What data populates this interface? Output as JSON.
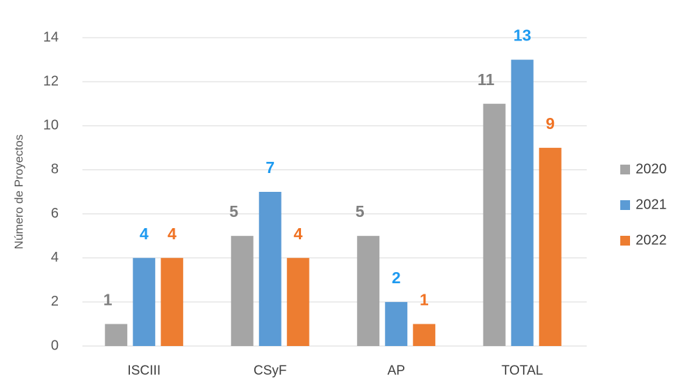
{
  "chart_data": {
    "type": "bar",
    "y_label": "Número de Proyectos",
    "categories": [
      "ISCIII",
      "CSyF",
      "AP",
      "TOTAL"
    ],
    "series": [
      {
        "name": "2020",
        "color": "#a5a5a5",
        "label_color": "#7f7f7f",
        "values": [
          1,
          5,
          5,
          11
        ]
      },
      {
        "name": "2021",
        "color": "#5b9bd5",
        "label_color": "#1e9af0",
        "values": [
          4,
          7,
          2,
          13
        ]
      },
      {
        "name": "2022",
        "color": "#ed7d31",
        "label_color": "#f07223",
        "values": [
          4,
          4,
          1,
          9
        ]
      }
    ],
    "ylim": [
      0,
      14
    ],
    "yticks": [
      0,
      2,
      4,
      6,
      8,
      10,
      12,
      14
    ],
    "grid": true,
    "legend": "right"
  }
}
